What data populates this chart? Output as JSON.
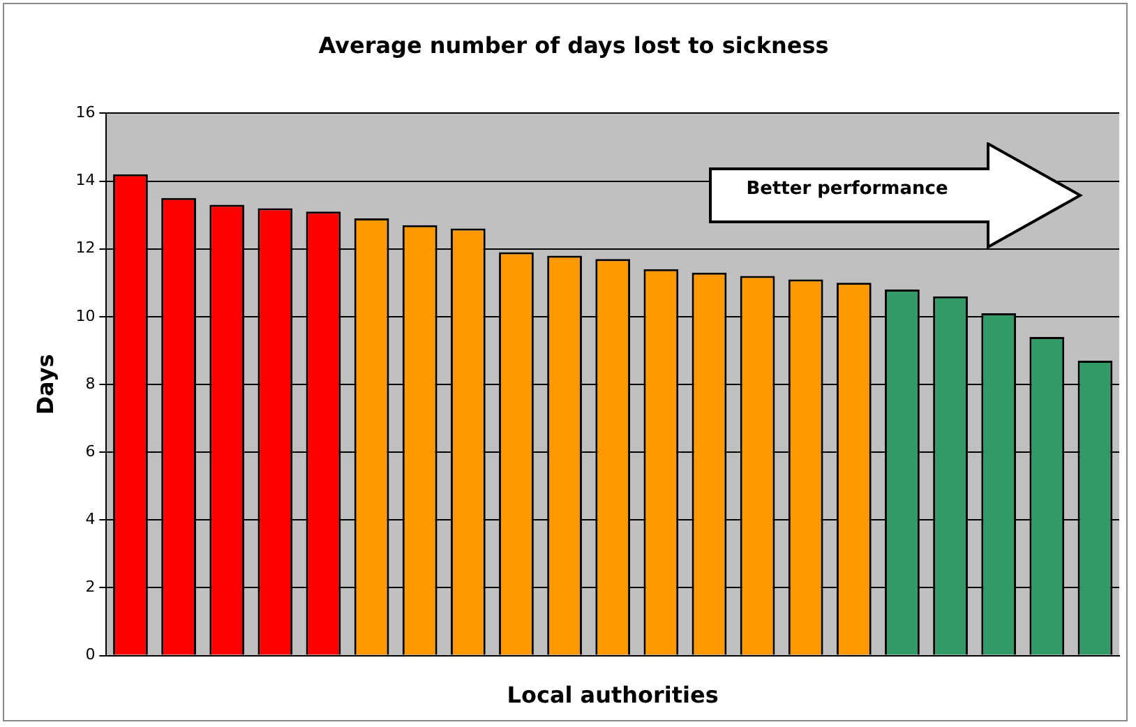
{
  "chart_data": {
    "type": "bar",
    "title": "Average number of days lost to sickness",
    "xlabel": "Local authorities",
    "ylabel": "Days",
    "categories": [
      null,
      null,
      null,
      null,
      null,
      null,
      null,
      null,
      null,
      null,
      null,
      null,
      null,
      null,
      null,
      null,
      null,
      null,
      null,
      null,
      null
    ],
    "values": [
      14.2,
      13.5,
      13.3,
      13.2,
      13.1,
      12.9,
      12.7,
      12.6,
      11.9,
      11.8,
      11.7,
      11.4,
      11.3,
      11.2,
      11.1,
      11.0,
      10.8,
      10.6,
      10.1,
      9.4,
      8.7
    ],
    "colors": [
      "#ff0000",
      "#ff0000",
      "#ff0000",
      "#ff0000",
      "#ff0000",
      "#ff9900",
      "#ff9900",
      "#ff9900",
      "#ff9900",
      "#ff9900",
      "#ff9900",
      "#ff9900",
      "#ff9900",
      "#ff9900",
      "#ff9900",
      "#ff9900",
      "#339966",
      "#339966",
      "#339966",
      "#339966",
      "#339966"
    ],
    "ylim": [
      0,
      16
    ],
    "yticks": [
      0,
      2,
      4,
      6,
      8,
      10,
      12,
      14,
      16
    ],
    "grid": "y",
    "legend": false,
    "annotations": [
      "Better performance"
    ]
  }
}
